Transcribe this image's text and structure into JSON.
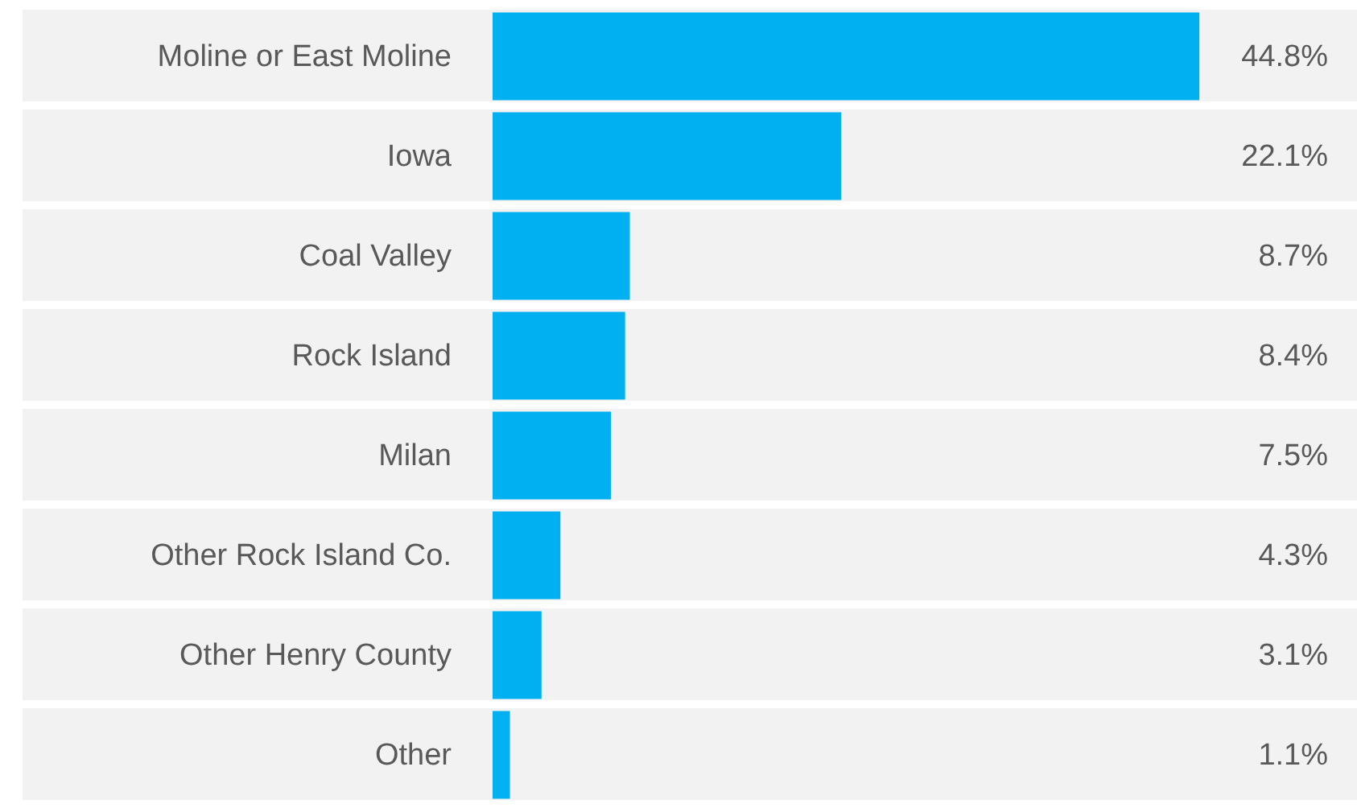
{
  "chart_data": {
    "type": "bar",
    "orientation": "horizontal",
    "categories": [
      "Moline or East Moline",
      "Iowa",
      "Coal Valley",
      "Rock Island",
      "Milan",
      "Other Rock Island Co.",
      "Other Henry County",
      "Other"
    ],
    "values": [
      44.8,
      22.1,
      8.7,
      8.4,
      7.5,
      4.3,
      3.1,
      1.1
    ],
    "value_labels": [
      "44.8%",
      "22.1%",
      "8.7%",
      "8.4%",
      "7.5%",
      "4.3%",
      "3.1%",
      "1.1%"
    ],
    "color": "#00b0f0",
    "tick_labels": "y"
  }
}
